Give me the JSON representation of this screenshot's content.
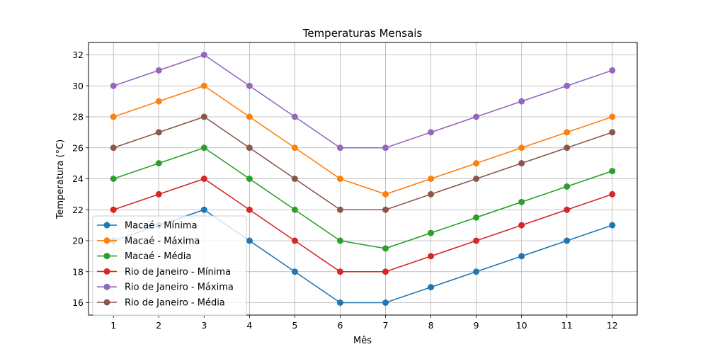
{
  "chart_data": {
    "type": "line",
    "title": "Temperaturas Mensais",
    "xlabel": "Mês",
    "ylabel": "Temperatura (°C)",
    "x": [
      1,
      2,
      3,
      4,
      5,
      6,
      7,
      8,
      9,
      10,
      11,
      12
    ],
    "x_tick_labels": [
      "1",
      "2",
      "3",
      "4",
      "5",
      "6",
      "7",
      "8",
      "9",
      "10",
      "11",
      "12"
    ],
    "y_ticks": [
      16,
      18,
      20,
      22,
      24,
      26,
      28,
      30,
      32
    ],
    "y_tick_labels": [
      "16",
      "18",
      "20",
      "22",
      "24",
      "26",
      "28",
      "30",
      "32"
    ],
    "xlim": [
      0.45,
      12.55
    ],
    "ylim": [
      15.2,
      32.8
    ],
    "grid": true,
    "legend_position": "lower-left",
    "series": [
      {
        "name": "Macaé - Mínima",
        "color": "#1f77b4",
        "values": [
          20,
          21,
          22,
          20,
          18,
          16,
          16,
          17,
          18,
          19,
          20,
          21
        ]
      },
      {
        "name": "Macaé - Máxima",
        "color": "#ff7f0e",
        "values": [
          28,
          29,
          30,
          28,
          26,
          24,
          23,
          24,
          25,
          26,
          27,
          28
        ]
      },
      {
        "name": "Macaé - Média",
        "color": "#2ca02c",
        "values": [
          24,
          25,
          26,
          24,
          22,
          20,
          19.5,
          20.5,
          21.5,
          22.5,
          23.5,
          24.5
        ]
      },
      {
        "name": "Rio de Janeiro - Mínima",
        "color": "#d62728",
        "values": [
          22,
          23,
          24,
          22,
          20,
          18,
          18,
          19,
          20,
          21,
          22,
          23
        ]
      },
      {
        "name": "Rio de Janeiro - Máxima",
        "color": "#9467bd",
        "values": [
          30,
          31,
          32,
          30,
          28,
          26,
          26,
          27,
          28,
          29,
          30,
          31
        ]
      },
      {
        "name": "Rio de Janeiro - Média",
        "color": "#8c564b",
        "values": [
          26,
          27,
          28,
          26,
          24,
          22,
          22,
          23,
          24,
          25,
          26,
          27
        ]
      }
    ]
  }
}
